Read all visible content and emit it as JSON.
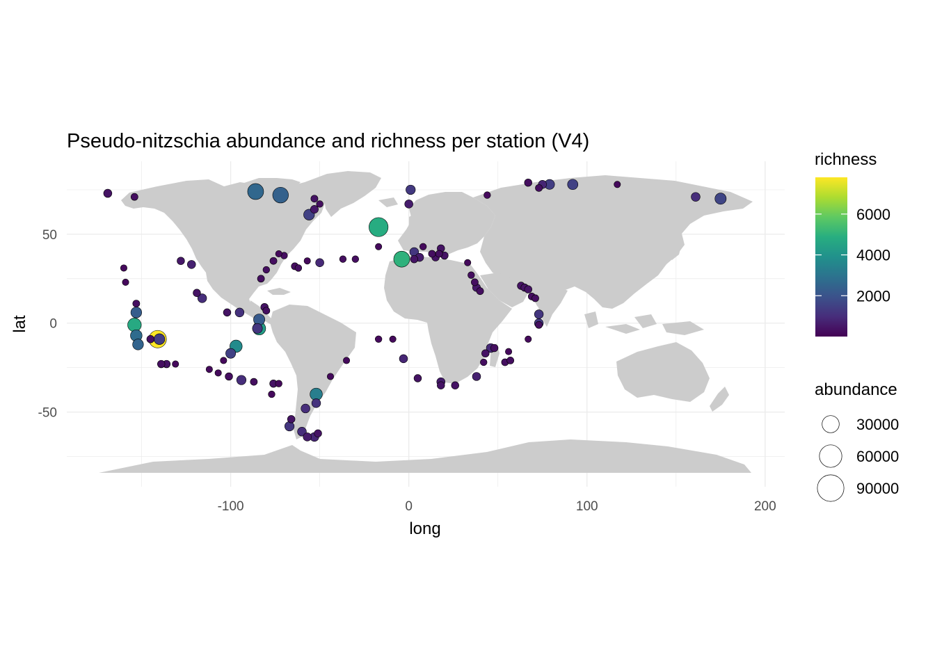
{
  "chart_data": {
    "type": "scatter",
    "title": "Pseudo-nitzschia abundance and richness per station (V4)",
    "xlabel": "long",
    "ylabel": "lat",
    "xlim": [
      -192,
      211
    ],
    "ylim": [
      -92,
      91
    ],
    "xticks": [
      -100,
      0,
      100,
      200
    ],
    "yticks": [
      -50,
      0,
      50
    ],
    "grid": true,
    "legend_placement": "right",
    "colormap": "viridis",
    "colors": {
      "land": "#cccccc",
      "grid": "#ebebeb",
      "point_stroke": "#000000"
    },
    "legend_color": {
      "title": "richness",
      "min": 0,
      "max": 7800,
      "ticks": [
        2000,
        4000,
        6000
      ]
    },
    "legend_size": {
      "title": "abundance",
      "values": [
        30000,
        60000,
        90000
      ]
    },
    "points": [
      {
        "x": -169,
        "y": 73,
        "abundance": 3000,
        "richness": 400
      },
      {
        "x": -154,
        "y": 71,
        "abundance": 1500,
        "richness": 300
      },
      {
        "x": -86,
        "y": 74,
        "abundance": 25000,
        "richness": 2600
      },
      {
        "x": -72,
        "y": 72,
        "abundance": 24000,
        "richness": 2400
      },
      {
        "x": -56,
        "y": 61,
        "abundance": 8000,
        "richness": 1500
      },
      {
        "x": -53,
        "y": 64,
        "abundance": 2500,
        "richness": 500
      },
      {
        "x": -50,
        "y": 67,
        "abundance": 1200,
        "richness": 300
      },
      {
        "x": -53,
        "y": 70,
        "abundance": 1500,
        "richness": 400
      },
      {
        "x": -17,
        "y": 54,
        "abundance": 40000,
        "richness": 4800
      },
      {
        "x": 1,
        "y": 75,
        "abundance": 5000,
        "richness": 1300
      },
      {
        "x": 0,
        "y": 67,
        "abundance": 3000,
        "richness": 600
      },
      {
        "x": 44,
        "y": 72,
        "abundance": 1200,
        "richness": 200
      },
      {
        "x": 67,
        "y": 79,
        "abundance": 2000,
        "richness": 300
      },
      {
        "x": 75,
        "y": 78,
        "abundance": 3000,
        "richness": 800
      },
      {
        "x": 79,
        "y": 78,
        "abundance": 6000,
        "richness": 1400
      },
      {
        "x": 73,
        "y": 76,
        "abundance": 1500,
        "richness": 300
      },
      {
        "x": 92,
        "y": 78,
        "abundance": 7000,
        "richness": 1500
      },
      {
        "x": 117,
        "y": 78,
        "abundance": 1000,
        "richness": 200
      },
      {
        "x": 161,
        "y": 71,
        "abundance": 4000,
        "richness": 1000
      },
      {
        "x": 175,
        "y": 70,
        "abundance": 9000,
        "richness": 1600
      },
      {
        "x": -160,
        "y": 31,
        "abundance": 1000,
        "richness": 200
      },
      {
        "x": -159,
        "y": 23,
        "abundance": 1000,
        "richness": 200
      },
      {
        "x": -128,
        "y": 35,
        "abundance": 2000,
        "richness": 500
      },
      {
        "x": -122,
        "y": 33,
        "abundance": 3000,
        "richness": 700
      },
      {
        "x": -119,
        "y": 17,
        "abundance": 2000,
        "richness": 400
      },
      {
        "x": -116,
        "y": 14,
        "abundance": 4000,
        "richness": 1000
      },
      {
        "x": -80,
        "y": 30,
        "abundance": 1200,
        "richness": 300
      },
      {
        "x": -70,
        "y": 38,
        "abundance": 1200,
        "richness": 300
      },
      {
        "x": -73,
        "y": 39,
        "abundance": 1000,
        "richness": 200
      },
      {
        "x": -76,
        "y": 35,
        "abundance": 1500,
        "richness": 300
      },
      {
        "x": -64,
        "y": 32,
        "abundance": 1500,
        "richness": 300
      },
      {
        "x": -62,
        "y": 31,
        "abundance": 1200,
        "richness": 300
      },
      {
        "x": -57,
        "y": 35,
        "abundance": 1000,
        "richness": 200
      },
      {
        "x": -50,
        "y": 34,
        "abundance": 3000,
        "richness": 900
      },
      {
        "x": -37,
        "y": 36,
        "abundance": 1200,
        "richness": 300
      },
      {
        "x": -30,
        "y": 36,
        "abundance": 1200,
        "richness": 300
      },
      {
        "x": -17,
        "y": 43,
        "abundance": 1000,
        "richness": 200
      },
      {
        "x": -4,
        "y": 36,
        "abundance": 25000,
        "richness": 5000
      },
      {
        "x": 3,
        "y": 40,
        "abundance": 4000,
        "richness": 1200
      },
      {
        "x": 6,
        "y": 37,
        "abundance": 3000,
        "richness": 600
      },
      {
        "x": 3,
        "y": 36,
        "abundance": 2000,
        "richness": 400
      },
      {
        "x": 8,
        "y": 43,
        "abundance": 1200,
        "richness": 200
      },
      {
        "x": 13,
        "y": 39,
        "abundance": 1500,
        "richness": 300
      },
      {
        "x": 15,
        "y": 37,
        "abundance": 2000,
        "richness": 400
      },
      {
        "x": 17,
        "y": 39,
        "abundance": 1500,
        "richness": 300
      },
      {
        "x": 18,
        "y": 42,
        "abundance": 2000,
        "richness": 400
      },
      {
        "x": 20,
        "y": 38,
        "abundance": 2000,
        "richness": 400
      },
      {
        "x": 33,
        "y": 34,
        "abundance": 1000,
        "richness": 200
      },
      {
        "x": -83,
        "y": 25,
        "abundance": 1500,
        "richness": 300
      },
      {
        "x": -102,
        "y": 6,
        "abundance": 2000,
        "richness": 400
      },
      {
        "x": -95,
        "y": 6,
        "abundance": 4000,
        "richness": 1100
      },
      {
        "x": -84,
        "y": 2,
        "abundance": 9000,
        "richness": 2200
      },
      {
        "x": -84,
        "y": -3,
        "abundance": 14000,
        "richness": 4300
      },
      {
        "x": -85,
        "y": -3,
        "abundance": 6000,
        "richness": 1200
      },
      {
        "x": -81,
        "y": 9,
        "abundance": 2000,
        "richness": 400
      },
      {
        "x": -80,
        "y": 7,
        "abundance": 1500,
        "richness": 300
      },
      {
        "x": -153,
        "y": 11,
        "abundance": 1500,
        "richness": 300
      },
      {
        "x": -153,
        "y": 6,
        "abundance": 8000,
        "richness": 2300
      },
      {
        "x": -154,
        "y": -1,
        "abundance": 16000,
        "richness": 4700
      },
      {
        "x": -153,
        "y": -7,
        "abundance": 10000,
        "richness": 2700
      },
      {
        "x": -152,
        "y": -12,
        "abundance": 8000,
        "richness": 2500
      },
      {
        "x": -141,
        "y": -9,
        "abundance": 32000,
        "richness": 7800
      },
      {
        "x": -140,
        "y": -9,
        "abundance": 8000,
        "richness": 1400
      },
      {
        "x": -145,
        "y": -9,
        "abundance": 2000,
        "richness": 300
      },
      {
        "x": -97,
        "y": -13,
        "abundance": 12000,
        "richness": 3700
      },
      {
        "x": -100,
        "y": -17,
        "abundance": 6000,
        "richness": 1500
      },
      {
        "x": -104,
        "y": -21,
        "abundance": 1000,
        "richness": 200
      },
      {
        "x": -136,
        "y": -23,
        "abundance": 2000,
        "richness": 400
      },
      {
        "x": -139,
        "y": -23,
        "abundance": 2000,
        "richness": 300
      },
      {
        "x": -131,
        "y": -23,
        "abundance": 1000,
        "richness": 200
      },
      {
        "x": -112,
        "y": -26,
        "abundance": 1000,
        "richness": 200
      },
      {
        "x": -107,
        "y": -28,
        "abundance": 1000,
        "richness": 200
      },
      {
        "x": -101,
        "y": -30,
        "abundance": 2000,
        "richness": 300
      },
      {
        "x": -94,
        "y": -32,
        "abundance": 5000,
        "richness": 1000
      },
      {
        "x": -87,
        "y": -33,
        "abundance": 1500,
        "richness": 300
      },
      {
        "x": -76,
        "y": -34,
        "abundance": 2000,
        "richness": 400
      },
      {
        "x": -73,
        "y": -34,
        "abundance": 1200,
        "richness": 200
      },
      {
        "x": -77,
        "y": -40,
        "abundance": 1200,
        "richness": 200
      },
      {
        "x": -44,
        "y": -30,
        "abundance": 1000,
        "richness": 200
      },
      {
        "x": -35,
        "y": -21,
        "abundance": 1000,
        "richness": 200
      },
      {
        "x": -52,
        "y": -40,
        "abundance": 12000,
        "richness": 3300
      },
      {
        "x": -52,
        "y": -45,
        "abundance": 4000,
        "richness": 1100
      },
      {
        "x": -58,
        "y": -48,
        "abundance": 4000,
        "richness": 1000
      },
      {
        "x": -67,
        "y": -58,
        "abundance": 5000,
        "richness": 1200
      },
      {
        "x": -66,
        "y": -54,
        "abundance": 2000,
        "richness": 400
      },
      {
        "x": -60,
        "y": -61,
        "abundance": 4000,
        "richness": 1000
      },
      {
        "x": -57,
        "y": -64,
        "abundance": 3000,
        "richness": 600
      },
      {
        "x": -53,
        "y": -64,
        "abundance": 4000,
        "richness": 800
      },
      {
        "x": -51,
        "y": -62,
        "abundance": 2000,
        "richness": 400
      },
      {
        "x": -17,
        "y": -9,
        "abundance": 1200,
        "richness": 200
      },
      {
        "x": -9,
        "y": -9,
        "abundance": 1000,
        "richness": 200
      },
      {
        "x": -3,
        "y": -20,
        "abundance": 3000,
        "richness": 800
      },
      {
        "x": 5,
        "y": -31,
        "abundance": 2000,
        "richness": 400
      },
      {
        "x": 18,
        "y": -33,
        "abundance": 3000,
        "richness": 600
      },
      {
        "x": 18,
        "y": -35,
        "abundance": 2000,
        "richness": 400
      },
      {
        "x": 26,
        "y": -35,
        "abundance": 2000,
        "richness": 400
      },
      {
        "x": 38,
        "y": -30,
        "abundance": 3000,
        "richness": 700
      },
      {
        "x": 42,
        "y": -22,
        "abundance": 1200,
        "richness": 300
      },
      {
        "x": 43,
        "y": -17,
        "abundance": 2000,
        "richness": 400
      },
      {
        "x": 46,
        "y": -14,
        "abundance": 4000,
        "richness": 900
      },
      {
        "x": 48,
        "y": -14,
        "abundance": 2000,
        "richness": 300
      },
      {
        "x": 54,
        "y": -22,
        "abundance": 1500,
        "richness": 300
      },
      {
        "x": 57,
        "y": -21,
        "abundance": 1500,
        "richness": 300
      },
      {
        "x": 56,
        "y": -16,
        "abundance": 1000,
        "richness": 200
      },
      {
        "x": 67,
        "y": -9,
        "abundance": 1000,
        "richness": 200
      },
      {
        "x": 35,
        "y": 27,
        "abundance": 1200,
        "richness": 300
      },
      {
        "x": 37,
        "y": 23,
        "abundance": 1500,
        "richness": 300
      },
      {
        "x": 38,
        "y": 20,
        "abundance": 2500,
        "richness": 500
      },
      {
        "x": 40,
        "y": 18,
        "abundance": 1500,
        "richness": 300
      },
      {
        "x": 63,
        "y": 21,
        "abundance": 2000,
        "richness": 400
      },
      {
        "x": 65,
        "y": 20,
        "abundance": 2000,
        "richness": 400
      },
      {
        "x": 67,
        "y": 19,
        "abundance": 2000,
        "richness": 400
      },
      {
        "x": 69,
        "y": 15,
        "abundance": 1500,
        "richness": 300
      },
      {
        "x": 71,
        "y": 14,
        "abundance": 1500,
        "richness": 300
      },
      {
        "x": 73,
        "y": 5,
        "abundance": 4000,
        "richness": 1200
      },
      {
        "x": 73,
        "y": 0,
        "abundance": 4000,
        "richness": 1300
      },
      {
        "x": 73,
        "y": -1,
        "abundance": 1500,
        "richness": 300
      }
    ]
  }
}
